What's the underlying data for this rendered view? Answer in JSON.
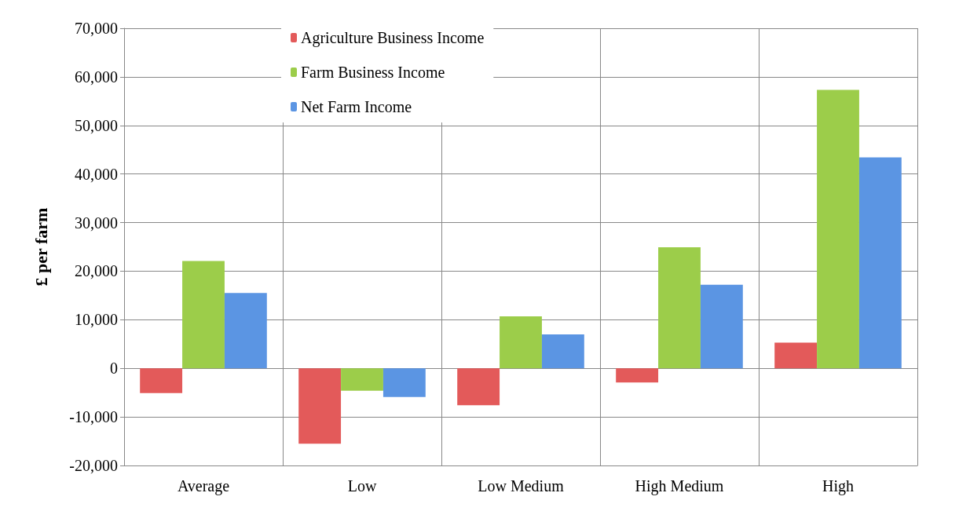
{
  "chart_data": {
    "type": "bar",
    "ylabel": "£ per farm",
    "categories": [
      "Average",
      "Low",
      "Low Medium",
      "High Medium",
      "High"
    ],
    "series": [
      {
        "name": "Agriculture Business Income",
        "color": "#e35a5a",
        "values": [
          -5100,
          -15500,
          -7600,
          -2900,
          5300
        ]
      },
      {
        "name": "Farm Business Income",
        "color": "#9ccd4a",
        "values": [
          22100,
          -4600,
          10700,
          24900,
          57300
        ]
      },
      {
        "name": "Net Farm Income",
        "color": "#5b95e3",
        "values": [
          15500,
          -5900,
          7000,
          17200,
          43400
        ]
      }
    ],
    "ylim": [
      -20000,
      70000
    ],
    "yticks": [
      {
        "value": -20000,
        "label": "-20,000"
      },
      {
        "value": -10000,
        "label": "-10,000"
      },
      0,
      {
        "value": 10000,
        "label": "10,000"
      },
      {
        "value": 20000,
        "label": "20,000"
      },
      {
        "value": 30000,
        "label": "30,000"
      },
      {
        "value": 40000,
        "label": "40,000"
      },
      {
        "value": 50000,
        "label": "50,000"
      },
      {
        "value": 60000,
        "label": "60,000"
      },
      {
        "value": 70000,
        "label": "70,000"
      }
    ],
    "grid": true,
    "legend": "top left"
  }
}
